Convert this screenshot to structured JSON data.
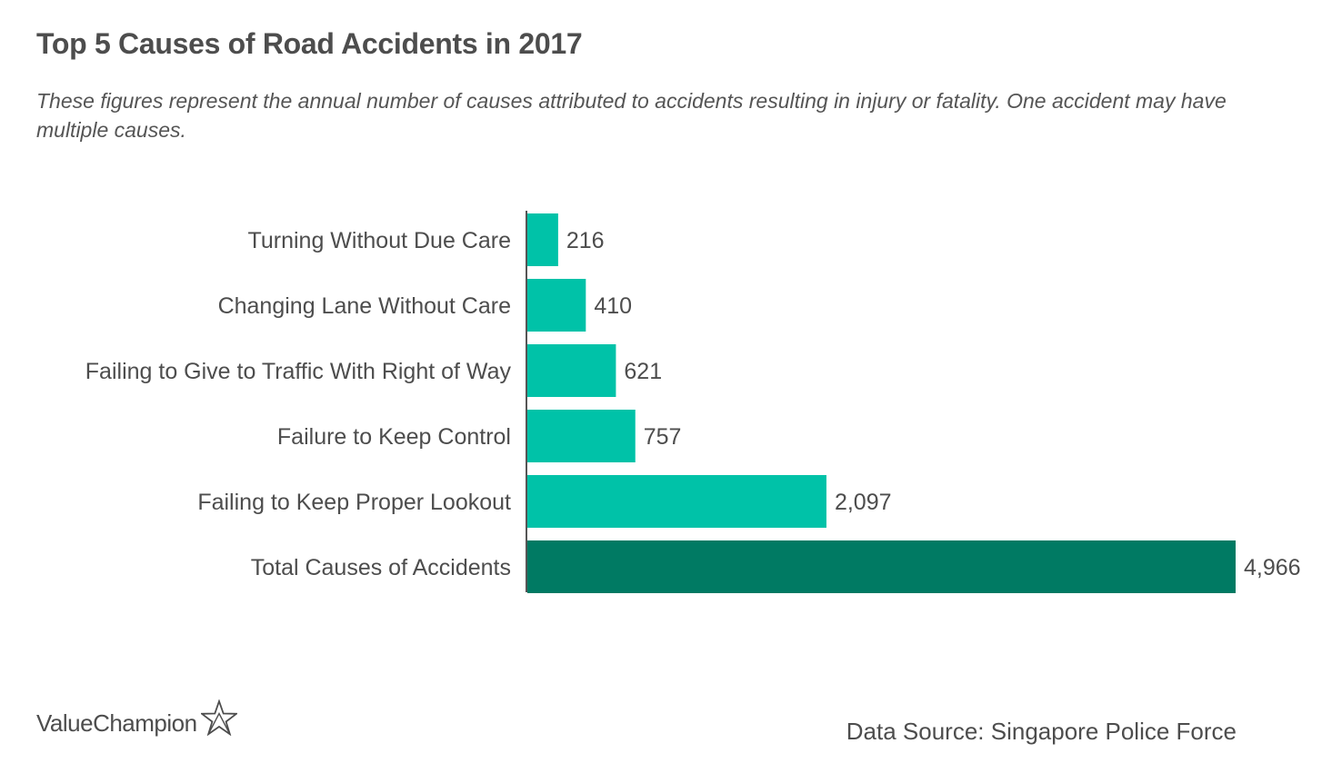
{
  "chart_data": {
    "type": "bar",
    "orientation": "horizontal",
    "title": "Top 5 Causes of Road Accidents in 2017",
    "subtitle": "These figures represent the annual number of causes attributed to accidents resulting in injury or fatality. One accident may have multiple causes.",
    "categories": [
      "Turning Without Due Care",
      "Changing Lane Without Care",
      "Failing to Give to Traffic With Right of Way",
      "Failure to Keep Control",
      "Failing to Keep Proper Lookout",
      "Total Causes of Accidents"
    ],
    "values": [
      216,
      410,
      621,
      757,
      2097,
      4966
    ],
    "value_labels": [
      "216",
      "410",
      "621",
      "757",
      "2,097",
      "4,966"
    ],
    "bar_colors": [
      "#00c2a8",
      "#00c2a8",
      "#00c2a8",
      "#00c2a8",
      "#00c2a8",
      "#007a63"
    ],
    "xlim": [
      0,
      4966
    ],
    "grid": false,
    "legend": "none"
  },
  "branding": {
    "logo_text": "ValueChampion",
    "logo_icon": "star-outline-icon"
  },
  "source": "Data Source: Singapore Police Force"
}
